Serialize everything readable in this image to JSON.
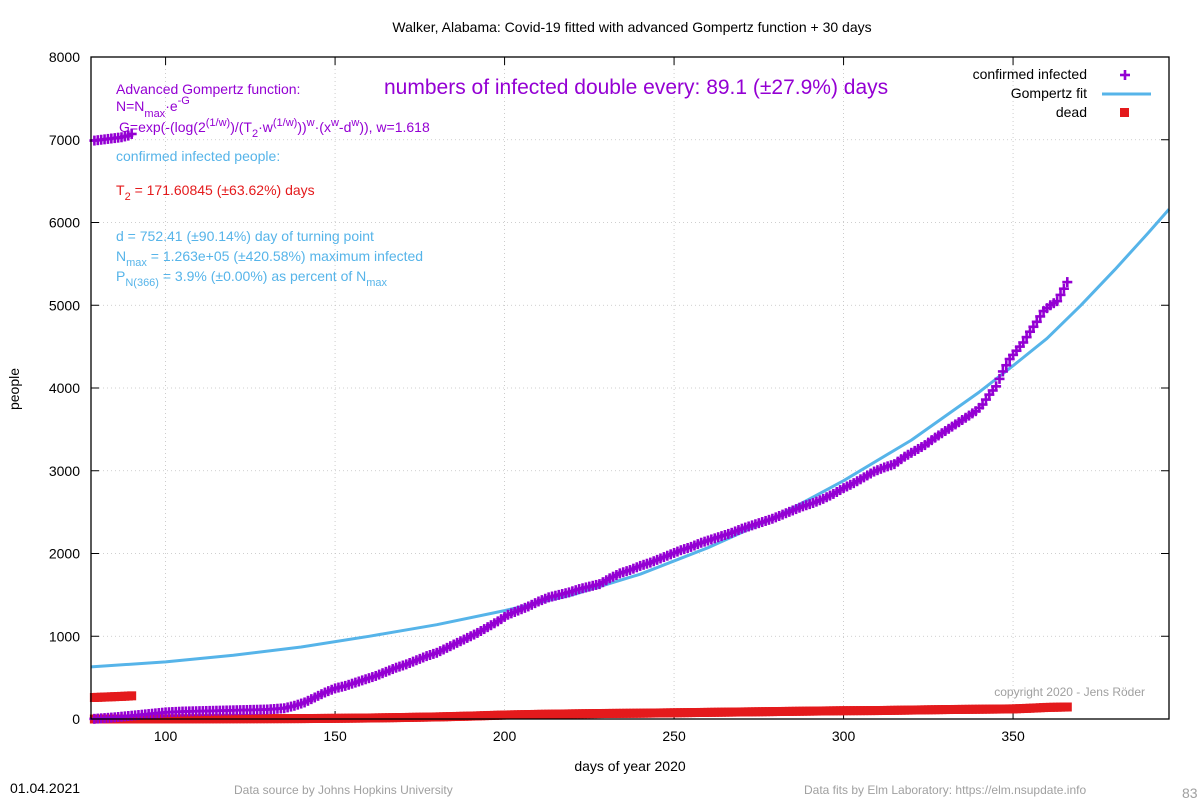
{
  "chart_data": {
    "type": "scatter",
    "title": "Walker,  Alabama: Covid-19 fitted with advanced Gompertz function + 30 days",
    "xlabel": "days of year 2020",
    "ylabel": "people",
    "xlim": [
      78,
      396
    ],
    "ylim": [
      0,
      8000
    ],
    "xticks": [
      100,
      150,
      200,
      250,
      300,
      350
    ],
    "yticks": [
      0,
      1000,
      2000,
      3000,
      4000,
      5000,
      6000,
      7000,
      8000
    ],
    "grid": true,
    "legend_position": "top-right",
    "series": [
      {
        "name": "confirmed infected",
        "style": "plus",
        "color": "#9400d3",
        "x": [
          79,
          85,
          90,
          95,
          100,
          105,
          110,
          115,
          120,
          125,
          130,
          135,
          138,
          141,
          144,
          147,
          150,
          153,
          156,
          159,
          162,
          165,
          168,
          171,
          174,
          177,
          180,
          183,
          186,
          189,
          192,
          195,
          198,
          201,
          204,
          207,
          210,
          213,
          216,
          219,
          222,
          225,
          228,
          231,
          234,
          237,
          240,
          243,
          246,
          249,
          252,
          255,
          258,
          261,
          264,
          267,
          270,
          273,
          276,
          279,
          282,
          285,
          288,
          291,
          294,
          297,
          300,
          303,
          306,
          309,
          312,
          315,
          318,
          321,
          324,
          327,
          330,
          333,
          336,
          339,
          341,
          343,
          345,
          347,
          349,
          351,
          353,
          355,
          357,
          359,
          361,
          363,
          365,
          366
        ],
        "y": [
          2,
          20,
          40,
          60,
          80,
          90,
          95,
          100,
          105,
          110,
          115,
          130,
          160,
          200,
          260,
          320,
          370,
          400,
          440,
          480,
          520,
          570,
          620,
          660,
          710,
          760,
          800,
          860,
          920,
          980,
          1040,
          1110,
          1180,
          1260,
          1310,
          1360,
          1420,
          1470,
          1500,
          1530,
          1570,
          1600,
          1630,
          1700,
          1760,
          1800,
          1850,
          1890,
          1940,
          1990,
          2040,
          2080,
          2130,
          2170,
          2210,
          2250,
          2300,
          2340,
          2380,
          2420,
          2470,
          2520,
          2570,
          2610,
          2660,
          2720,
          2790,
          2850,
          2920,
          2990,
          3040,
          3080,
          3170,
          3240,
          3310,
          3400,
          3480,
          3560,
          3640,
          3720,
          3800,
          3920,
          4020,
          4200,
          4350,
          4450,
          4550,
          4680,
          4800,
          4930,
          5000,
          5050,
          5200,
          5280
        ]
      },
      {
        "name": "Gompertz fit",
        "style": "line",
        "color": "#56b4e9",
        "x": [
          78,
          100,
          120,
          140,
          160,
          180,
          200,
          220,
          240,
          260,
          280,
          300,
          320,
          340,
          350,
          360,
          370,
          380,
          390,
          396
        ],
        "y": [
          630,
          690,
          770,
          870,
          1000,
          1140,
          1310,
          1500,
          1750,
          2070,
          2440,
          2880,
          3370,
          3950,
          4270,
          4600,
          5000,
          5430,
          5880,
          6160
        ]
      },
      {
        "name": "dead",
        "style": "square",
        "color": "#e41a1c",
        "x": [
          79,
          90,
          100,
          110,
          120,
          130,
          140,
          150,
          160,
          170,
          180,
          190,
          200,
          210,
          220,
          230,
          240,
          250,
          260,
          270,
          280,
          290,
          300,
          310,
          320,
          330,
          340,
          350,
          355,
          360,
          366
        ],
        "y": [
          0,
          0,
          1,
          2,
          3,
          4,
          5,
          8,
          12,
          18,
          25,
          35,
          48,
          56,
          62,
          67,
          70,
          75,
          80,
          85,
          90,
          95,
          100,
          102,
          108,
          114,
          118,
          122,
          130,
          140,
          145
        ]
      }
    ],
    "overlay_series": [
      {
        "name": "confirmed infected (log overlay)",
        "style": "plus",
        "color": "#9400d3",
        "x": [
          79,
          81,
          83,
          85,
          87,
          89,
          90
        ],
        "y": [
          6990,
          7000,
          7010,
          7020,
          7030,
          7050,
          7070
        ]
      },
      {
        "name": "dead (log overlay)",
        "style": "square",
        "color": "#e41a1c",
        "x": [
          79,
          82,
          85,
          88,
          90
        ],
        "y": [
          260,
          265,
          270,
          275,
          280
        ]
      }
    ]
  },
  "annotations": {
    "headline": "numbers of infected double every: 89.1 (±27.9%) days",
    "func_title": "Advanced Gompertz function:",
    "formula1": [
      "N=N",
      "max",
      "·e",
      "-G"
    ],
    "formula2": [
      "G=exp(-(log(2",
      "(1/w)",
      ")/(T",
      "2",
      "·w",
      "(1/w)",
      "))",
      "w",
      "·(x",
      "w",
      "-d",
      "w",
      ")), w=1.618"
    ],
    "confirmed_label": "confirmed infected people:",
    "t2_line": [
      "T",
      "2",
      " = 171.60845 (±63.62%) days"
    ],
    "d_line": "d = 752.41 (±90.14%) day of turning point",
    "nmax_line": [
      "N",
      "max",
      " = 1.263e+05 (±420.58%) maximum infected"
    ],
    "p_line": [
      "P",
      "N(366)",
      " = 3.9% (±0.00%) as percent of N",
      "max"
    ],
    "copyright": "copyright 2020 - Jens Röder"
  },
  "legend": {
    "confirmed": "confirmed infected",
    "fit": "Gompertz fit",
    "dead": "dead"
  },
  "footer": {
    "date": "01.04.2021",
    "source": "Data source by Johns Hopkins University",
    "fits": "Data fits by Elm Laboratory: https://elm.nsupdate.info",
    "page": "83"
  },
  "colors": {
    "purple": "#9400d3",
    "blue": "#56b4e9",
    "red": "#e41a1c",
    "title_purple": "#9400d3",
    "red_text": "#e41a1c"
  }
}
